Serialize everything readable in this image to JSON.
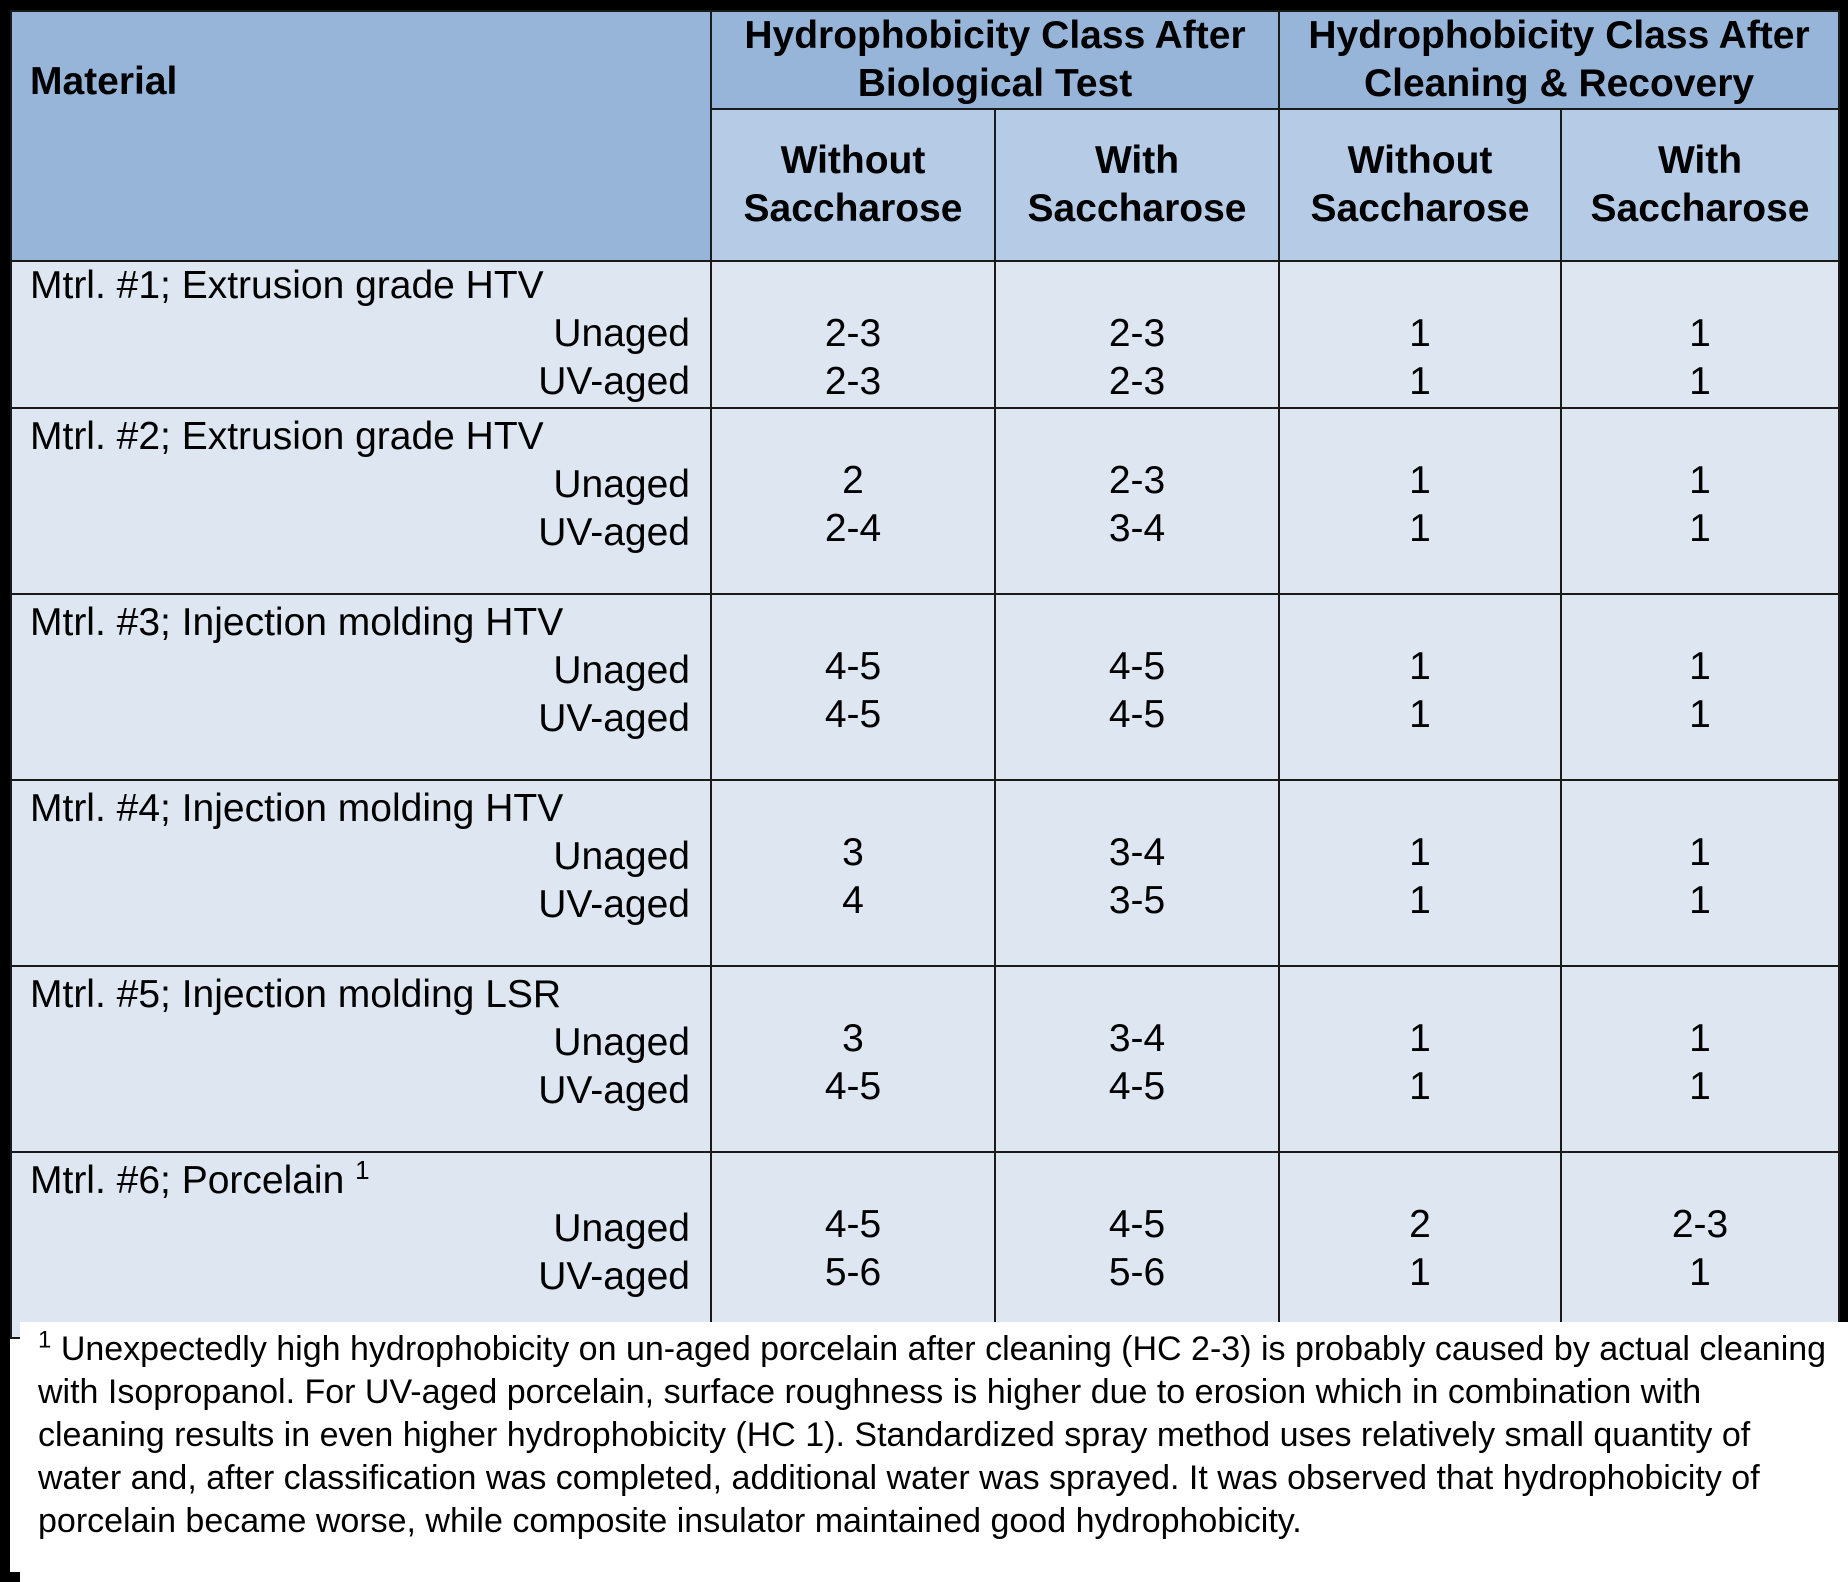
{
  "header": {
    "material_label": "Material",
    "group_biological": "Hydrophobicity Class After Biological Test",
    "group_cleaning": "Hydrophobicity Class After Cleaning & Recovery",
    "without_saccharose": "Without Saccharose",
    "with_saccharose": "With Saccharose"
  },
  "condition_labels": {
    "unaged": "Unaged",
    "uv_aged": "UV-aged"
  },
  "materials": [
    {
      "name": "Mtrl. #1; Extrusion grade HTV",
      "footnote_mark": "",
      "unaged": {
        "bio_without": "2-3",
        "bio_with": "2-3",
        "clean_without": "1",
        "clean_with": "1"
      },
      "uv_aged": {
        "bio_without": "2-3",
        "bio_with": "2-3",
        "clean_without": "1",
        "clean_with": "1"
      }
    },
    {
      "name": "Mtrl. #2; Extrusion grade HTV",
      "footnote_mark": "",
      "unaged": {
        "bio_without": "2",
        "bio_with": "2-3",
        "clean_without": "1",
        "clean_with": "1"
      },
      "uv_aged": {
        "bio_without": "2-4",
        "bio_with": "3-4",
        "clean_without": "1",
        "clean_with": "1"
      }
    },
    {
      "name": "Mtrl. #3; Injection molding HTV",
      "footnote_mark": "",
      "unaged": {
        "bio_without": "4-5",
        "bio_with": "4-5",
        "clean_without": "1",
        "clean_with": "1"
      },
      "uv_aged": {
        "bio_without": "4-5",
        "bio_with": "4-5",
        "clean_without": "1",
        "clean_with": "1"
      }
    },
    {
      "name": "Mtrl. #4; Injection molding HTV",
      "footnote_mark": "",
      "unaged": {
        "bio_without": "3",
        "bio_with": "3-4",
        "clean_without": "1",
        "clean_with": "1"
      },
      "uv_aged": {
        "bio_without": "4",
        "bio_with": "3-5",
        "clean_without": "1",
        "clean_with": "1"
      }
    },
    {
      "name": "Mtrl. #5; Injection molding LSR",
      "footnote_mark": "",
      "unaged": {
        "bio_without": "3",
        "bio_with": "3-4",
        "clean_without": "1",
        "clean_with": "1"
      },
      "uv_aged": {
        "bio_without": "4-5",
        "bio_with": "4-5",
        "clean_without": "1",
        "clean_with": "1"
      }
    },
    {
      "name": "Mtrl. #6; Porcelain",
      "footnote_mark": "1",
      "unaged": {
        "bio_without": "4-5",
        "bio_with": "4-5",
        "clean_without": "2",
        "clean_with": "2-3"
      },
      "uv_aged": {
        "bio_without": "5-6",
        "bio_with": "5-6",
        "clean_without": "1",
        "clean_with": "1"
      }
    }
  ],
  "footnote": {
    "mark": "1",
    "text": "Unexpectedly high hydrophobicity on un-aged porcelain after cleaning (HC 2-3) is probably caused by actual cleaning with Isopropanol. For UV-aged porcelain, surface roughness is higher due to erosion which in combination with cleaning results in even higher hydrophobicity (HC 1). Standardized spray method uses relatively small quantity of water and, after classification was completed, additional water was sprayed. It was observed that hydrophobicity of porcelain became worse, while composite insulator maintained good hydrophobicity."
  },
  "colors": {
    "header_bg": "#97b5d9",
    "subheader_bg": "#b5cbe6",
    "body_bg": "#dde6f1",
    "border": "#1a1a1a"
  }
}
